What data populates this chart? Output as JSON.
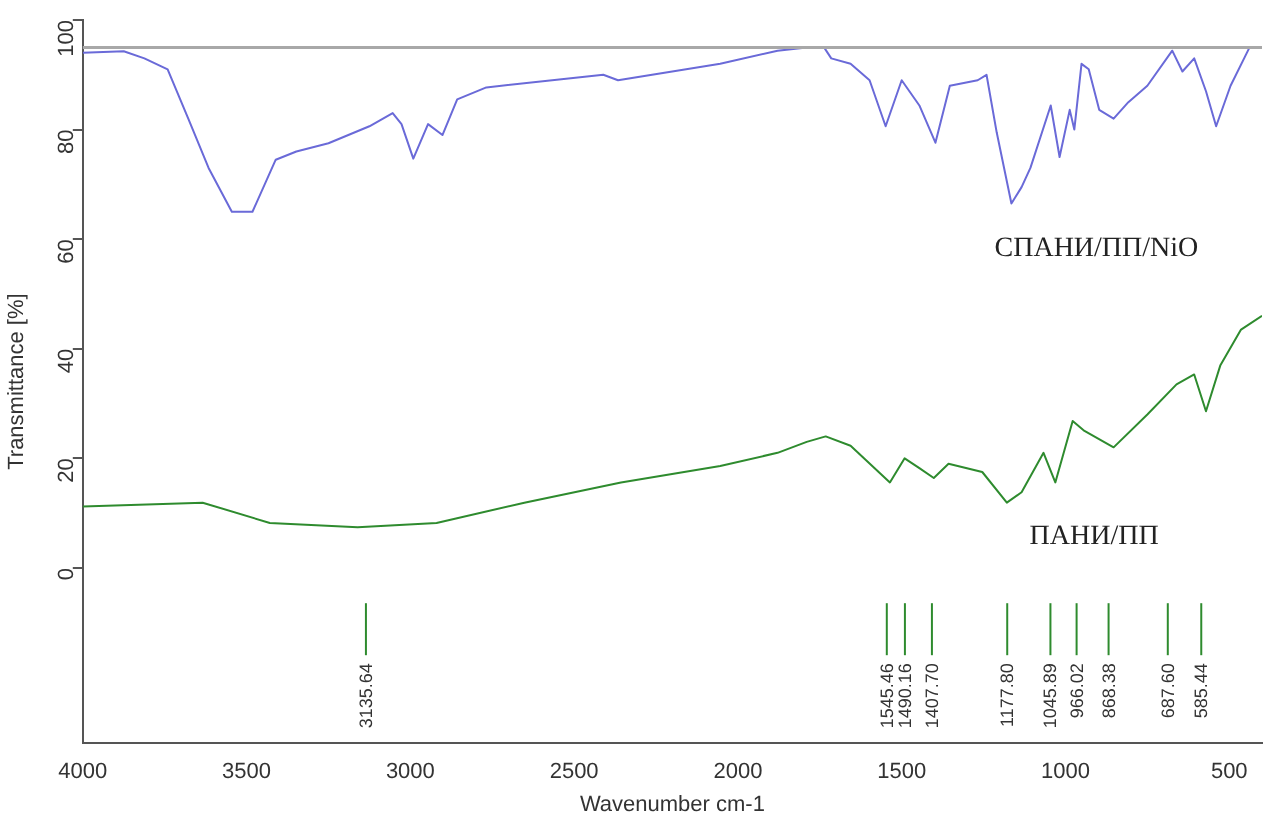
{
  "chart_data": {
    "type": "line",
    "xlabel": "Wavenumber cm-1",
    "ylabel": "Transmittance [%]",
    "xlim": [
      4000,
      400
    ],
    "xticks": [
      4000,
      3500,
      3000,
      2500,
      2000,
      1500,
      1000,
      500
    ],
    "ylim": [
      -32,
      100
    ],
    "yticks": [
      0,
      20,
      40,
      60,
      80,
      100
    ],
    "grid": false,
    "legend": false,
    "marker": "none",
    "line_style": "solid",
    "series": [
      {
        "name": "СПАНИ/ПП/NiO",
        "color": "#6a6ad8",
        "x": [
          4000,
          3875,
          3812,
          3741,
          3678,
          3616,
          3545,
          3482,
          3411,
          3348,
          3250,
          3125,
          3054,
          3027,
          2991,
          2946,
          2902,
          2857,
          2768,
          2411,
          2366,
          2054,
          1879,
          1790,
          1737,
          1715,
          1656,
          1598,
          1549,
          1500,
          1446,
          1397,
          1353,
          1268,
          1241,
          1210,
          1165,
          1134,
          1107,
          1045,
          1018,
          987,
          973,
          951,
          929,
          897,
          853,
          808,
          750,
          674,
          643,
          607,
          571,
          540,
          496,
          438,
          406
        ],
        "values": [
          94,
          94.3,
          93,
          91,
          82,
          73,
          65,
          65,
          74.5,
          76,
          77.5,
          80.6,
          83,
          81,
          74.7,
          81,
          79,
          85.5,
          87.7,
          90,
          89,
          92,
          94.4,
          95,
          95,
          93,
          92,
          89,
          80.6,
          89,
          84.4,
          77.6,
          88,
          89,
          90,
          79.5,
          66.5,
          69.5,
          73,
          84.4,
          75,
          83.6,
          80,
          92,
          91,
          83.6,
          82,
          85,
          88,
          94.4,
          90.6,
          93,
          87,
          80.6,
          88,
          95,
          95
        ]
      },
      {
        "name": "ПАНИ/ПП",
        "color": "#2e8b2e",
        "x": [
          4000,
          3634,
          3429,
          3161,
          2920,
          2652,
          2357,
          2054,
          1879,
          1790,
          1732,
          1656,
          1536,
          1491,
          1446,
          1402,
          1357,
          1254,
          1179,
          1134,
          1067,
          1031,
          978,
          942,
          853,
          750,
          661,
          607,
          571,
          527,
          464,
          400
        ],
        "values": [
          11.2,
          11.9,
          8.2,
          7.4,
          8.2,
          11.9,
          15.6,
          18.6,
          21,
          23,
          24,
          22.3,
          15.6,
          20,
          18.2,
          16.4,
          19,
          17.5,
          11.9,
          13.8,
          21,
          15.6,
          26.8,
          25,
          22,
          28,
          33.5,
          35.3,
          28.6,
          37,
          43.5,
          46
        ]
      }
    ],
    "ref_lines": [
      {
        "axis": "y",
        "value": 95,
        "color": "#a8a8a8"
      },
      {
        "axis": "x",
        "value": 3135.64,
        "label": "3135.64",
        "color": "#2e8b2e"
      },
      {
        "axis": "x",
        "value": 1545.46,
        "label": "1545.46",
        "color": "#2e8b2e"
      },
      {
        "axis": "x",
        "value": 1490.16,
        "label": "1490.16",
        "color": "#2e8b2e"
      },
      {
        "axis": "x",
        "value": 1407.7,
        "label": "1407.70",
        "color": "#2e8b2e"
      },
      {
        "axis": "x",
        "value": 1177.8,
        "label": "1177.80",
        "color": "#2e8b2e"
      },
      {
        "axis": "x",
        "value": 1045.89,
        "label": "1045.89",
        "color": "#2e8b2e"
      },
      {
        "axis": "x",
        "value": 966.02,
        "label": "966.02",
        "color": "#2e8b2e"
      },
      {
        "axis": "x",
        "value": 868.38,
        "label": "868.38",
        "color": "#2e8b2e"
      },
      {
        "axis": "x",
        "value": 687.6,
        "label": "687.60",
        "color": "#2e8b2e"
      },
      {
        "axis": "x",
        "value": 585.44,
        "label": "585.44",
        "color": "#2e8b2e"
      }
    ]
  }
}
